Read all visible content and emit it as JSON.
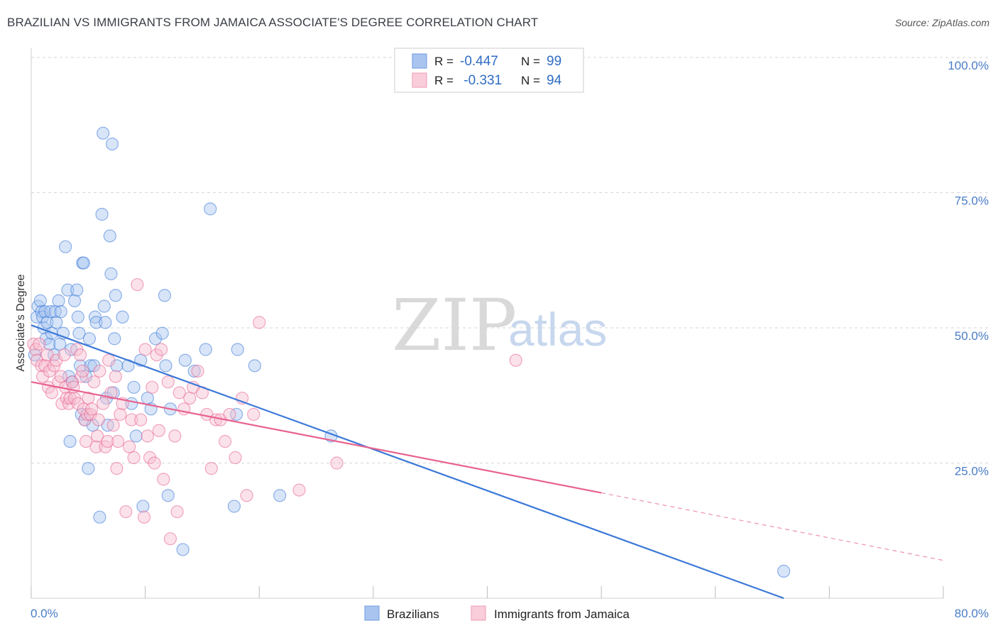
{
  "header": {
    "title": "BRAZILIAN VS IMMIGRANTS FROM JAMAICA ASSOCIATE'S DEGREE CORRELATION CHART",
    "source": "Source: ZipAtlas.com"
  },
  "watermark": {
    "zip": "ZIP",
    "atlas": "atlas"
  },
  "legend_top": {
    "rows": [
      {
        "r_label": "R = ",
        "r_value": "-0.447",
        "n_label": "N = ",
        "n_value": "99",
        "color": "#7aa7e6"
      },
      {
        "r_label": "R = ",
        "r_value": " -0.331",
        "n_label": "N = ",
        "n_value": "94",
        "color": "#f4a6bf"
      }
    ]
  },
  "legend_bottom": {
    "items": [
      {
        "label": "Brazilians",
        "color": "#7aa7e6"
      },
      {
        "label": "Immigrants from Jamaica",
        "color": "#f4a6bf"
      }
    ]
  },
  "chart_data": {
    "type": "scatter",
    "title": "BRAZILIAN VS IMMIGRANTS FROM JAMAICA ASSOCIATE'S DEGREE CORRELATION CHART",
    "xlabel": "",
    "ylabel": "Associate's Degree",
    "xlim": [
      0,
      80
    ],
    "ylim": [
      0,
      100
    ],
    "x_tick_labels": [
      "0.0%",
      "80.0%"
    ],
    "y_ticks": [
      25,
      50,
      75,
      100
    ],
    "y_tick_labels": [
      "25.0%",
      "50.0%",
      "75.0%",
      "100.0%"
    ],
    "series": [
      {
        "name": "Brazilians",
        "color": "#3b78d8",
        "fill": "#a9c5ef",
        "r": -0.447,
        "n": 99,
        "trend": {
          "x0": 0,
          "y0": 50.5,
          "x1": 66,
          "y1": 0,
          "dash_to": null
        },
        "points": [
          [
            0.3,
            45
          ],
          [
            0.5,
            52
          ],
          [
            0.6,
            54
          ],
          [
            0.8,
            55
          ],
          [
            0.9,
            53
          ],
          [
            1.0,
            52
          ],
          [
            1.1,
            50
          ],
          [
            1.2,
            53
          ],
          [
            1.3,
            48
          ],
          [
            1.4,
            51
          ],
          [
            1.6,
            47
          ],
          [
            1.7,
            53
          ],
          [
            1.8,
            49
          ],
          [
            2.0,
            45
          ],
          [
            2.1,
            53
          ],
          [
            2.2,
            51
          ],
          [
            2.4,
            55
          ],
          [
            2.5,
            47
          ],
          [
            2.6,
            53
          ],
          [
            2.8,
            49
          ],
          [
            3.0,
            65
          ],
          [
            3.2,
            57
          ],
          [
            3.3,
            41
          ],
          [
            3.4,
            29
          ],
          [
            3.5,
            46
          ],
          [
            3.6,
            40
          ],
          [
            3.8,
            55
          ],
          [
            4.0,
            57
          ],
          [
            4.1,
            52
          ],
          [
            4.2,
            49
          ],
          [
            4.3,
            43
          ],
          [
            4.4,
            34
          ],
          [
            4.5,
            62
          ],
          [
            4.6,
            62
          ],
          [
            4.7,
            33
          ],
          [
            4.8,
            41
          ],
          [
            5.0,
            24
          ],
          [
            5.1,
            48
          ],
          [
            5.2,
            43
          ],
          [
            5.4,
            32
          ],
          [
            5.5,
            43
          ],
          [
            5.6,
            52
          ],
          [
            5.7,
            51
          ],
          [
            6.0,
            15
          ],
          [
            6.2,
            71
          ],
          [
            6.3,
            86
          ],
          [
            6.4,
            54
          ],
          [
            6.5,
            51
          ],
          [
            6.6,
            37
          ],
          [
            6.7,
            32
          ],
          [
            6.9,
            67
          ],
          [
            7.0,
            60
          ],
          [
            7.1,
            84
          ],
          [
            7.2,
            38
          ],
          [
            7.3,
            48
          ],
          [
            7.4,
            56
          ],
          [
            7.5,
            43
          ],
          [
            8.0,
            52
          ],
          [
            8.5,
            43
          ],
          [
            8.8,
            36
          ],
          [
            9.0,
            39
          ],
          [
            9.2,
            30
          ],
          [
            9.6,
            44
          ],
          [
            9.8,
            17
          ],
          [
            10.2,
            37
          ],
          [
            10.5,
            35
          ],
          [
            10.9,
            48
          ],
          [
            11.5,
            49
          ],
          [
            11.7,
            56
          ],
          [
            11.8,
            43
          ],
          [
            12.0,
            19
          ],
          [
            12.2,
            35
          ],
          [
            13.3,
            9
          ],
          [
            13.5,
            44
          ],
          [
            14.3,
            42
          ],
          [
            15.3,
            46
          ],
          [
            15.7,
            72
          ],
          [
            17.8,
            17
          ],
          [
            18.0,
            34
          ],
          [
            18.1,
            46
          ],
          [
            19.6,
            43
          ],
          [
            21.8,
            19
          ],
          [
            26.3,
            30
          ],
          [
            66.0,
            5
          ]
        ]
      },
      {
        "name": "Immigrants from Jamaica",
        "color": "#e8628f",
        "fill": "#f6bfd0",
        "r": -0.331,
        "n": 94,
        "trend": {
          "x0": 0,
          "y0": 40,
          "x1": 50,
          "y1": 19.5,
          "dash_to": [
            80,
            7
          ]
        },
        "points": [
          [
            0.2,
            47
          ],
          [
            0.4,
            46
          ],
          [
            0.5,
            44
          ],
          [
            0.7,
            47
          ],
          [
            0.9,
            43
          ],
          [
            1.0,
            41
          ],
          [
            1.2,
            43
          ],
          [
            1.4,
            45
          ],
          [
            1.5,
            39
          ],
          [
            1.6,
            42
          ],
          [
            1.8,
            38
          ],
          [
            2.0,
            43
          ],
          [
            2.2,
            44
          ],
          [
            2.4,
            40
          ],
          [
            2.6,
            41
          ],
          [
            2.7,
            36
          ],
          [
            2.9,
            45
          ],
          [
            3.0,
            39
          ],
          [
            3.1,
            37
          ],
          [
            3.3,
            36
          ],
          [
            3.4,
            37
          ],
          [
            3.6,
            40
          ],
          [
            3.7,
            39
          ],
          [
            3.8,
            37
          ],
          [
            4.0,
            46
          ],
          [
            4.1,
            36
          ],
          [
            4.3,
            45
          ],
          [
            4.4,
            41
          ],
          [
            4.5,
            42
          ],
          [
            4.6,
            35
          ],
          [
            4.7,
            33
          ],
          [
            4.8,
            29
          ],
          [
            4.9,
            34
          ],
          [
            5.0,
            37
          ],
          [
            5.2,
            34
          ],
          [
            5.3,
            35
          ],
          [
            5.5,
            40
          ],
          [
            5.7,
            28
          ],
          [
            5.8,
            30
          ],
          [
            5.9,
            33
          ],
          [
            6.0,
            42
          ],
          [
            6.3,
            36
          ],
          [
            6.5,
            28
          ],
          [
            6.7,
            29
          ],
          [
            6.8,
            44
          ],
          [
            7.0,
            38
          ],
          [
            7.2,
            32
          ],
          [
            7.4,
            41
          ],
          [
            7.5,
            24
          ],
          [
            7.6,
            29
          ],
          [
            7.8,
            34
          ],
          [
            8.0,
            36
          ],
          [
            8.3,
            16
          ],
          [
            8.6,
            28
          ],
          [
            8.8,
            33
          ],
          [
            9.0,
            26
          ],
          [
            9.3,
            58
          ],
          [
            9.6,
            33
          ],
          [
            9.9,
            15
          ],
          [
            10.0,
            46
          ],
          [
            10.2,
            30
          ],
          [
            10.4,
            26
          ],
          [
            10.6,
            39
          ],
          [
            10.8,
            25
          ],
          [
            11.0,
            45
          ],
          [
            11.2,
            31
          ],
          [
            11.4,
            46
          ],
          [
            11.6,
            22
          ],
          [
            12.0,
            40
          ],
          [
            12.2,
            11
          ],
          [
            12.6,
            30
          ],
          [
            12.8,
            16
          ],
          [
            13.0,
            38
          ],
          [
            13.4,
            35
          ],
          [
            13.9,
            37
          ],
          [
            14.2,
            39
          ],
          [
            14.6,
            42
          ],
          [
            15.0,
            38
          ],
          [
            15.4,
            34
          ],
          [
            15.8,
            24
          ],
          [
            16.2,
            33
          ],
          [
            16.6,
            33
          ],
          [
            17.0,
            29
          ],
          [
            17.4,
            34
          ],
          [
            17.9,
            26
          ],
          [
            18.5,
            37
          ],
          [
            18.9,
            19
          ],
          [
            19.5,
            34
          ],
          [
            20.0,
            51
          ],
          [
            23.5,
            20
          ],
          [
            26.8,
            25
          ],
          [
            42.5,
            44
          ]
        ]
      }
    ]
  }
}
